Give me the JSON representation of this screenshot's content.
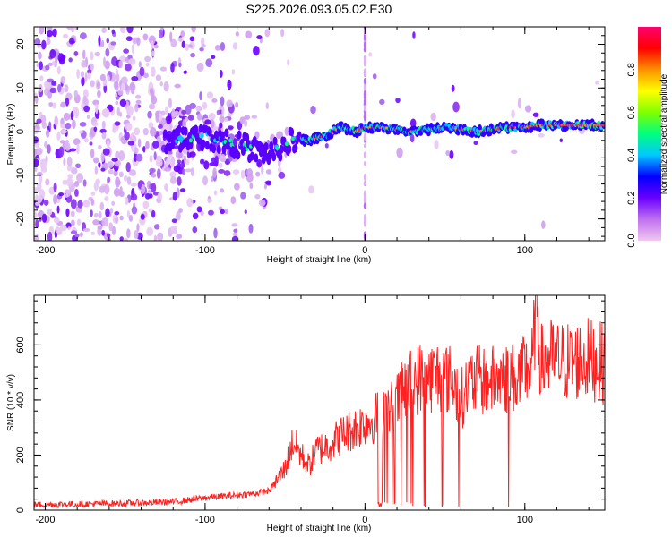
{
  "title": "S225.2026.093.05.02.E30",
  "chart_data": [
    {
      "type": "heatmap",
      "xlabel": "Height of straight line (km)",
      "ylabel": "Frequency (Hz)",
      "xlim": [
        -207,
        150
      ],
      "ylim": [
        -25,
        24
      ],
      "xticks": [
        -200,
        -100,
        0,
        100
      ],
      "yticks": [
        -20,
        -10,
        0,
        10,
        20
      ],
      "colorbar": {
        "label": "Normalized spectral amplitude",
        "range": [
          0,
          1
        ],
        "ticks": [
          0.0,
          0.2,
          0.4,
          0.6,
          0.8
        ],
        "colors": [
          "#f0c8f0",
          "#c070f0",
          "#6a00ff",
          "#0000ff",
          "#00c8ff",
          "#00ff80",
          "#80ff00",
          "#ffff00",
          "#ff9000",
          "#ff0000",
          "#ff0070"
        ]
      },
      "ridge": {
        "description": "dominant Doppler frequency track",
        "x": [
          -120,
          -100,
          -80,
          -60,
          -45,
          -35,
          -25,
          -15,
          -5,
          0,
          10,
          30,
          50,
          70,
          90,
          100,
          110,
          150
        ],
        "y": [
          -2,
          -1,
          -3,
          -5,
          -2,
          -2,
          -1,
          1,
          0,
          1,
          1,
          0,
          1,
          0,
          1,
          1,
          1.5,
          1.5
        ]
      },
      "vertical_streak_x": 0
    },
    {
      "type": "line",
      "xlabel": "Height of straight line (km)",
      "ylabel": "SNR (10 * v/v)",
      "xlim": [
        -207,
        150
      ],
      "ylim": [
        0,
        780
      ],
      "xticks": [
        -200,
        -100,
        0,
        100
      ],
      "yticks": [
        0,
        200,
        400,
        600
      ],
      "color": "#ff2020",
      "x": [
        -207,
        -180,
        -150,
        -120,
        -100,
        -80,
        -70,
        -60,
        -50,
        -45,
        -40,
        -35,
        -30,
        -25,
        -20,
        -15,
        -10,
        -5,
        0,
        5,
        10,
        15,
        20,
        25,
        30,
        35,
        40,
        45,
        50,
        55,
        60,
        65,
        70,
        75,
        80,
        85,
        90,
        95,
        100,
        105,
        107,
        110,
        115,
        120,
        130,
        140,
        150
      ],
      "y": [
        20,
        22,
        25,
        30,
        45,
        55,
        60,
        70,
        150,
        250,
        200,
        160,
        220,
        230,
        250,
        270,
        290,
        300,
        320,
        330,
        350,
        360,
        390,
        440,
        470,
        480,
        480,
        490,
        480,
        470,
        400,
        460,
        470,
        470,
        470,
        480,
        480,
        480,
        500,
        540,
        770,
        530,
        550,
        540,
        540,
        550,
        530
      ]
    }
  ]
}
